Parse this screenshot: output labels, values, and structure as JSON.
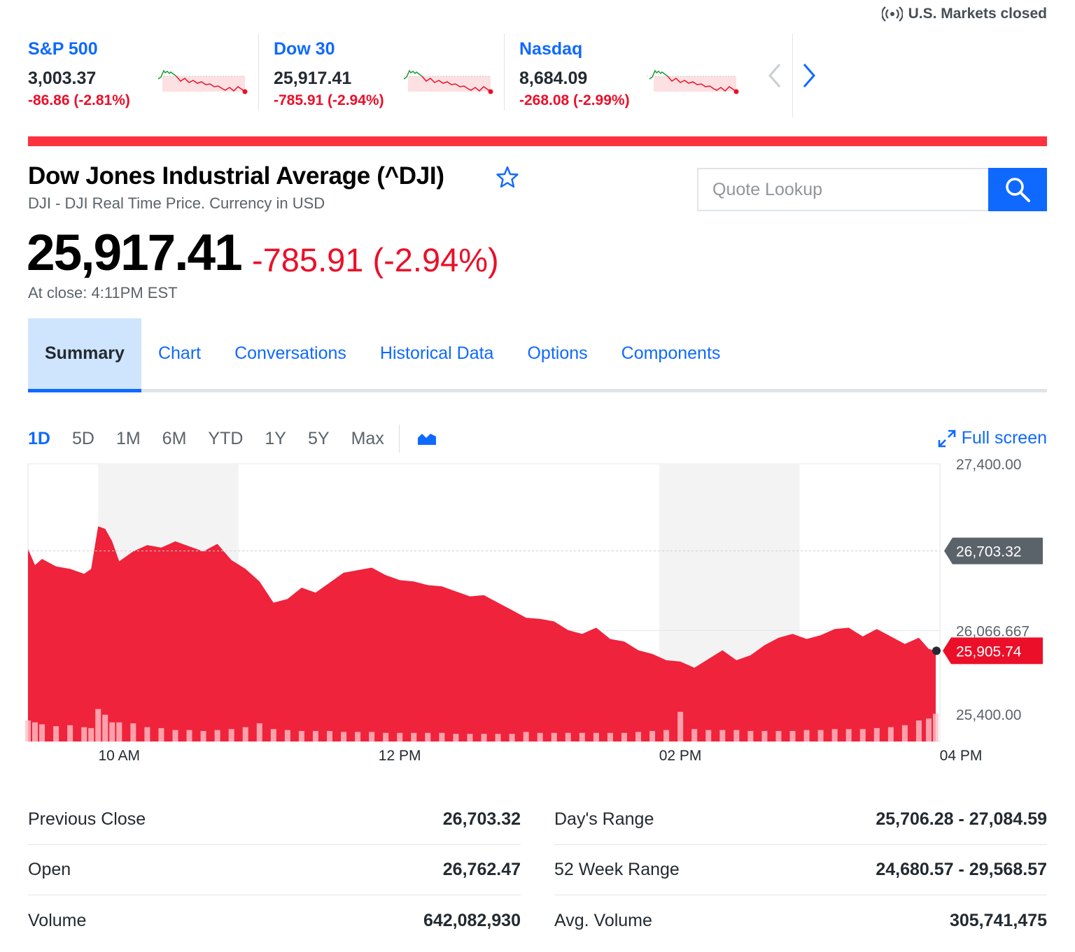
{
  "market_status": "U.S. Markets closed",
  "tickers": [
    {
      "name": "S&P 500",
      "price": "3,003.37",
      "change": "-86.86 (-2.81%)"
    },
    {
      "name": "Dow 30",
      "price": "25,917.41",
      "change": "-785.91 (-2.94%)"
    },
    {
      "name": "Nasdaq",
      "price": "8,684.09",
      "change": "-268.08 (-2.99%)"
    }
  ],
  "quote": {
    "title": "Dow Jones Industrial Average (^DJI)",
    "subtitle": "DJI - DJI Real Time Price. Currency in USD",
    "price": "25,917.41",
    "change": "-785.91 (-2.94%)",
    "close_time": "At close: 4:11PM EST"
  },
  "search": {
    "placeholder": "Quote Lookup"
  },
  "tabs": [
    {
      "label": "Summary"
    },
    {
      "label": "Chart"
    },
    {
      "label": "Conversations"
    },
    {
      "label": "Historical Data"
    },
    {
      "label": "Options"
    },
    {
      "label": "Components"
    }
  ],
  "ranges": [
    "1D",
    "5D",
    "1M",
    "6M",
    "YTD",
    "1Y",
    "5Y",
    "Max"
  ],
  "active_range": "1D",
  "fullscreen_label": "Full screen",
  "colors": {
    "accent": "#0f69ff",
    "negative": "#eb0f29",
    "area": "#ee1a33",
    "positive": "#1a9b30"
  },
  "chart_data": {
    "type": "area",
    "x_ticks": [
      "10 AM",
      "12 PM",
      "02 PM",
      "04 PM"
    ],
    "y_ticks": [
      "27,400.00",
      "26,066.667",
      "25,400.00"
    ],
    "y_tick_values": [
      27400,
      26066.667,
      25400
    ],
    "ylim": [
      25181,
      27400
    ],
    "reference_label": "26,703.32",
    "reference_value": 26703.32,
    "last_label": "25,905.74",
    "last_value": 25905.74,
    "grid": true,
    "x_hours": [
      9.5,
      9.55,
      9.6,
      9.7,
      9.8,
      9.9,
      9.95,
      10.0,
      10.05,
      10.1,
      10.15,
      10.25,
      10.35,
      10.45,
      10.55,
      10.65,
      10.75,
      10.85,
      10.95,
      11.05,
      11.15,
      11.25,
      11.35,
      11.45,
      11.55,
      11.65,
      11.75,
      11.85,
      11.95,
      12.05,
      12.15,
      12.25,
      12.35,
      12.45,
      12.55,
      12.65,
      12.75,
      12.85,
      12.95,
      13.05,
      13.15,
      13.25,
      13.35,
      13.45,
      13.55,
      13.65,
      13.75,
      13.85,
      13.95,
      14.05,
      14.15,
      14.25,
      14.35,
      14.45,
      14.55,
      14.65,
      14.75,
      14.85,
      14.95,
      15.05,
      15.15,
      15.25,
      15.35,
      15.45,
      15.55,
      15.65,
      15.75,
      15.85,
      15.92,
      15.97
    ],
    "values": [
      26720,
      26590,
      26640,
      26580,
      26560,
      26520,
      26560,
      26900,
      26880,
      26780,
      26620,
      26700,
      26750,
      26730,
      26780,
      26740,
      26700,
      26760,
      26630,
      26560,
      26460,
      26290,
      26320,
      26410,
      26370,
      26450,
      26530,
      26550,
      26570,
      26510,
      26470,
      26460,
      26430,
      26420,
      26380,
      26340,
      26350,
      26290,
      26230,
      26170,
      26160,
      26140,
      26070,
      26040,
      26090,
      26000,
      25980,
      25910,
      25880,
      25830,
      25820,
      25770,
      25840,
      25910,
      25830,
      25870,
      25950,
      26010,
      26040,
      26000,
      26030,
      26080,
      26090,
      26020,
      26080,
      26020,
      25960,
      26010,
      25920,
      25905.74
    ],
    "volume_relative": [
      0.22,
      0.2,
      0.18,
      0.16,
      0.17,
      0.15,
      0.14,
      0.34,
      0.28,
      0.2,
      0.2,
      0.19,
      0.15,
      0.14,
      0.12,
      0.12,
      0.11,
      0.12,
      0.13,
      0.15,
      0.19,
      0.13,
      0.12,
      0.11,
      0.11,
      0.11,
      0.1,
      0.1,
      0.1,
      0.09,
      0.09,
      0.09,
      0.09,
      0.09,
      0.08,
      0.08,
      0.08,
      0.08,
      0.08,
      0.1,
      0.09,
      0.09,
      0.09,
      0.09,
      0.09,
      0.09,
      0.09,
      0.1,
      0.11,
      0.12,
      0.31,
      0.13,
      0.12,
      0.12,
      0.12,
      0.11,
      0.11,
      0.11,
      0.11,
      0.12,
      0.12,
      0.13,
      0.13,
      0.13,
      0.14,
      0.15,
      0.17,
      0.22,
      0.24,
      0.29
    ]
  },
  "stats": {
    "left": [
      {
        "label": "Previous Close",
        "value": "26,703.32"
      },
      {
        "label": "Open",
        "value": "26,762.47"
      },
      {
        "label": "Volume",
        "value": "642,082,930"
      }
    ],
    "right": [
      {
        "label": "Day's Range",
        "value": "25,706.28 - 27,084.59"
      },
      {
        "label": "52 Week Range",
        "value": "24,680.57 - 29,568.57"
      },
      {
        "label": "Avg. Volume",
        "value": "305,741,475"
      }
    ]
  }
}
